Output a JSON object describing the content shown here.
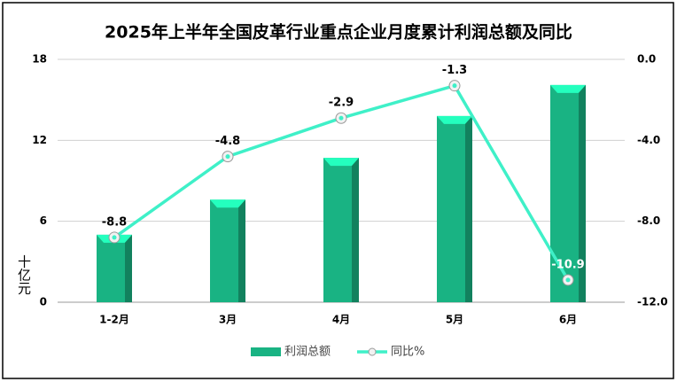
{
  "chart_data": {
    "type": "bar_line",
    "title": "2025年上半年全国皮革行业重点企业月度累计利润总额及同比",
    "y_label": "十亿元",
    "categories": [
      "1-2月",
      "3月",
      "4月",
      "5月",
      "6月"
    ],
    "series": [
      {
        "name": "利润总额",
        "type": "bar",
        "color": "#19b383",
        "values": [
          5.0,
          7.6,
          10.7,
          13.8,
          16.1
        ]
      },
      {
        "name": "同比%",
        "type": "line",
        "axis": "y2",
        "color": "#3ff0c8",
        "values": [
          -8.8,
          -4.8,
          -2.9,
          -1.3,
          -10.9
        ]
      }
    ],
    "ylim": [
      0,
      18
    ],
    "yticks": [
      0,
      6,
      12,
      18
    ],
    "y2lim": [
      -12,
      0
    ],
    "y2ticks": [
      {
        "value": -12,
        "label": "-12.0"
      },
      {
        "value": -8,
        "label": "-8.0"
      },
      {
        "value": -4,
        "label": "-4.0"
      },
      {
        "value": 0,
        "label": "0.0"
      }
    ],
    "grid": true,
    "legend": "bottom"
  }
}
